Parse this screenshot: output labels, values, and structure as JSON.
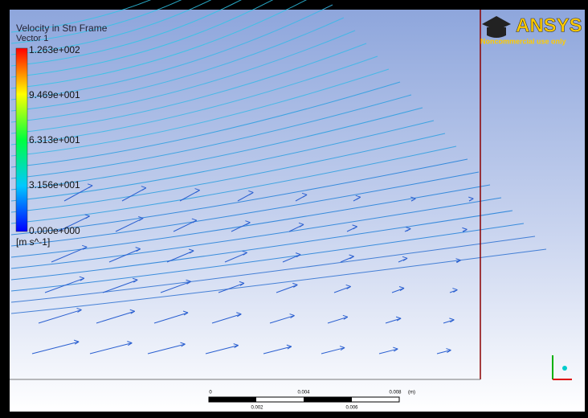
{
  "legend": {
    "title": "Velocity in Stn Frame",
    "subtitle": "Vector 1",
    "labels": [
      "1.263e+002",
      "9.469e+001",
      "6.313e+001",
      "3.156e+001",
      "0.000e+000"
    ],
    "unit": "[m s^-1]"
  },
  "logo": {
    "name": "ANSYS",
    "note": "Noncommercial use only"
  },
  "scale_bar": {
    "top_labels": [
      "0",
      "0.004",
      "0.008"
    ],
    "unit": "(m)",
    "bottom_labels": [
      "0.002",
      "0.006"
    ]
  }
}
